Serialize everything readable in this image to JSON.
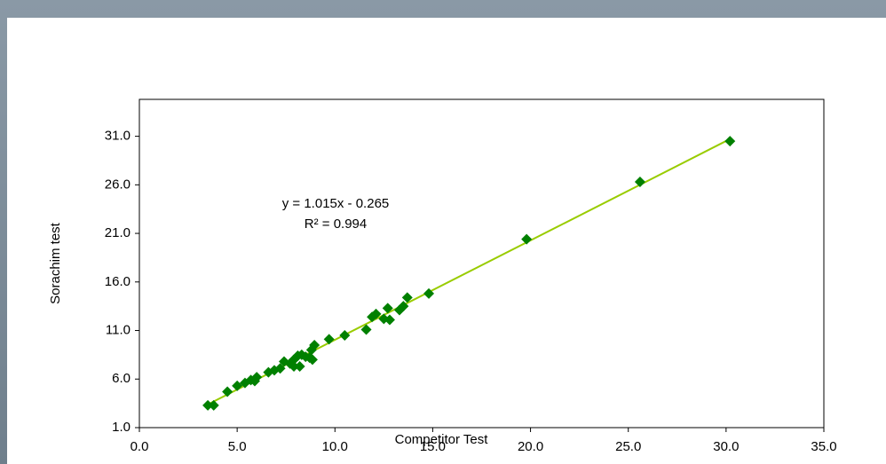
{
  "chart_data": {
    "type": "scatter",
    "x_label": "Competitor Test",
    "y_label": "Sorachim test",
    "annotations": [
      "y = 1.015x - 0.265",
      "R² = 0.994"
    ],
    "series": [
      {
        "color": "#008000",
        "trendline_color": "#99cc00",
        "x": [
          3.5,
          3.8,
          4.5,
          5.0,
          5.4,
          5.7,
          5.9,
          6.0,
          6.6,
          6.9,
          7.2,
          7.4,
          7.7,
          7.9,
          7.9,
          8.1,
          8.2,
          8.3,
          8.5,
          8.7,
          8.8,
          8.85,
          8.95,
          9.7,
          10.5,
          11.6,
          11.9,
          12.1,
          12.5,
          12.7,
          12.8,
          13.3,
          13.5,
          13.7,
          14.8,
          19.8,
          25.6,
          30.2
        ],
        "values": [
          3.3,
          3.3,
          4.7,
          5.3,
          5.6,
          5.9,
          5.8,
          6.2,
          6.7,
          6.9,
          7.1,
          7.8,
          7.6,
          7.3,
          8.0,
          8.4,
          7.3,
          8.5,
          8.3,
          8.2,
          9.0,
          8.0,
          9.5,
          10.1,
          10.5,
          11.1,
          12.4,
          12.7,
          12.2,
          13.3,
          12.1,
          13.1,
          13.5,
          14.4,
          14.8,
          20.4,
          26.3,
          30.5
        ]
      }
    ],
    "xlim": [
      0,
      35
    ],
    "xticks": [
      {
        "value": 0,
        "label": "0.0"
      },
      {
        "value": 5,
        "label": "5.0"
      },
      {
        "value": 10,
        "label": "10.0"
      },
      {
        "value": 15,
        "label": "15.0"
      },
      {
        "value": 20,
        "label": "20.0"
      },
      {
        "value": 25,
        "label": "25.0"
      },
      {
        "value": 30,
        "label": "30.0"
      },
      {
        "value": 35,
        "label": "35.0"
      }
    ],
    "ylim": [
      1,
      34.8
    ],
    "yticks": [
      {
        "value": 1,
        "label": "1.0"
      },
      {
        "value": 6,
        "label": "6.0"
      },
      {
        "value": 11,
        "label": "11.0"
      },
      {
        "value": 16,
        "label": "16.0"
      },
      {
        "value": 21,
        "label": "21.0"
      },
      {
        "value": 26,
        "label": "26.0"
      },
      {
        "value": 31,
        "label": "31.0"
      }
    ],
    "grid": false
  }
}
